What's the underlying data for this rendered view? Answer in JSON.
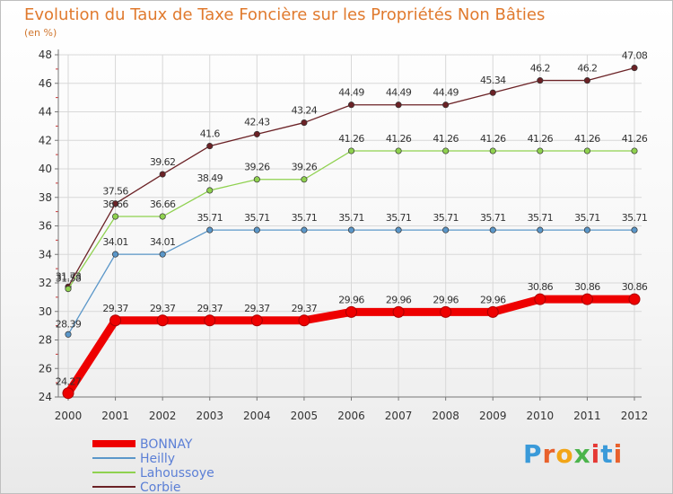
{
  "title": "Evolution du Taux de Taxe Foncière sur les Propriétés Non Bâties",
  "unit": "(en %)",
  "logo": {
    "text": "Proxiti"
  },
  "colors": {
    "BONNAY": "#ee0000",
    "Heilly": "#5b97c9",
    "Lahoussoye": "#8fd14f",
    "Corbie": "#6b2226",
    "axis": "#777777",
    "grid": "#d8d8d8",
    "legend_text": "#5b7fd6"
  },
  "chart_data": {
    "type": "line",
    "title": "Evolution du Taux de Taxe Foncière sur les Propriétés Non Bâties",
    "ylabel": "(en %)",
    "xlabel": "",
    "ylim": [
      24,
      48
    ],
    "yticks": [
      24,
      26,
      28,
      30,
      32,
      34,
      36,
      38,
      40,
      42,
      44,
      46,
      48
    ],
    "x": [
      "2000",
      "2001",
      "2002",
      "2003",
      "2004",
      "2005",
      "2006",
      "2007",
      "2008",
      "2009",
      "2010",
      "2011",
      "2012"
    ],
    "legend_position": "bottom-left",
    "series": [
      {
        "name": "BONNAY",
        "values": [
          24.27,
          29.37,
          29.37,
          29.37,
          29.37,
          29.37,
          29.96,
          29.96,
          29.96,
          29.96,
          30.86,
          30.86,
          30.86
        ],
        "labels": [
          "24.27",
          "29.37",
          "29.37",
          "29.37",
          "29.37",
          "29.37",
          "29.96",
          "29.96",
          "29.96",
          "29.96",
          "30.86",
          "30.86",
          "30.86"
        ]
      },
      {
        "name": "Heilly",
        "values": [
          28.39,
          34.01,
          34.01,
          35.71,
          35.71,
          35.71,
          35.71,
          35.71,
          35.71,
          35.71,
          35.71,
          35.71,
          35.71
        ],
        "labels": [
          "28.39",
          "34.01",
          "34.01",
          "35.71",
          "35.71",
          "35.71",
          "35.71",
          "35.71",
          "35.71",
          "35.71",
          "35.71",
          "35.71",
          "35.71"
        ]
      },
      {
        "name": "Lahoussoye",
        "values": [
          31.58,
          36.66,
          36.66,
          38.49,
          39.26,
          39.26,
          41.26,
          41.26,
          41.26,
          41.26,
          41.26,
          41.26,
          41.26
        ],
        "labels": [
          "31.58",
          "36.66",
          "36.66",
          "38.49",
          "39.26",
          "39.26",
          "41.26",
          "41.26",
          "41.26",
          "41.26",
          "41.26",
          "41.26",
          "41.26"
        ]
      },
      {
        "name": "Corbie",
        "values": [
          31.73,
          37.56,
          39.62,
          41.6,
          42.43,
          43.24,
          44.49,
          44.49,
          44.49,
          45.34,
          46.2,
          46.2,
          47.08
        ],
        "labels": [
          "31.73",
          "37.56",
          "39.62",
          "41.6",
          "42.43",
          "43.24",
          "44.49",
          "44.49",
          "44.49",
          "45.34",
          "46.2",
          "46.2",
          "47.08"
        ]
      }
    ]
  }
}
